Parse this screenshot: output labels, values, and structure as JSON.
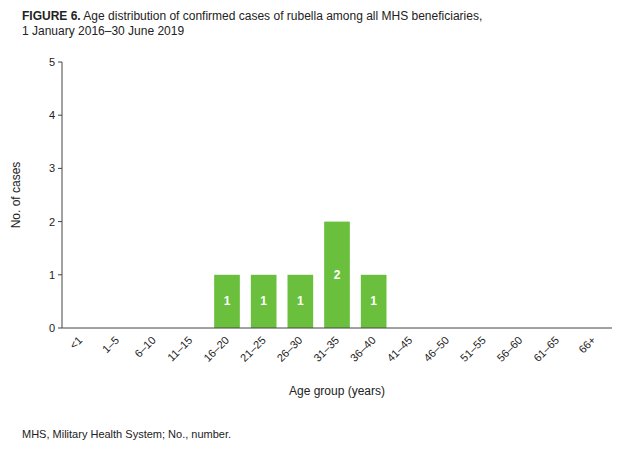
{
  "chart_data": {
    "type": "bar",
    "title": "FIGURE 6. Age distribution of confirmed cases of rubella among all MHS beneficiaries,\n1 January 2016–30 June 2019",
    "x_label": "Age group (years)",
    "y_label": "No. of cases",
    "categories": [
      "<1",
      "1–5",
      "6–10",
      "11–15",
      "16–20",
      "21–25",
      "26–30",
      "31–35",
      "36–40",
      "41–45",
      "46–50",
      "51–55",
      "56–60",
      "61–65",
      "66+"
    ],
    "values": [
      0,
      0,
      0,
      0,
      1,
      1,
      1,
      2,
      1,
      0,
      0,
      0,
      0,
      0,
      0
    ],
    "color": "#6abf3c",
    "ylim": [
      0,
      5
    ],
    "yticks": [
      0,
      1,
      2,
      3,
      4,
      5
    ],
    "grid": false,
    "data_labels": true,
    "annotations": [
      "MHS, Military Health System; No., number."
    ]
  }
}
